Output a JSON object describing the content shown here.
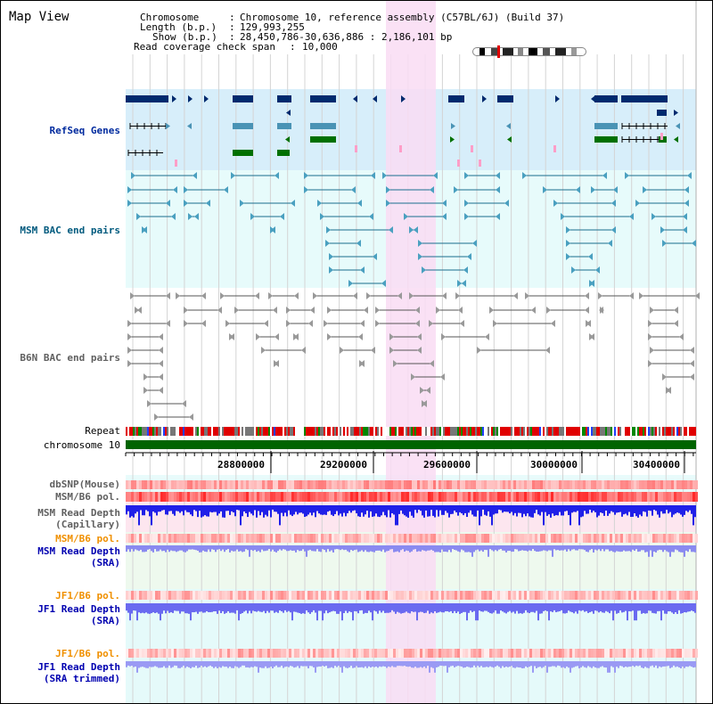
{
  "title": "Map View",
  "header": {
    "chromosome_key": "Chromosome",
    "chromosome_value": "Chromosome 10, reference assembly (C57BL/6J) (Build 37)",
    "length_key": "Length (b.p.)",
    "length_value": "129,993,255",
    "show_key": "Show (b.p.)",
    "show_value": "28,450,786-30,636,886 : 2,186,101 bp",
    "coverage_key": "Read coverage check span",
    "coverage_value": "10,000"
  },
  "tracks": {
    "refseq": "RefSeq Genes",
    "msm_bac": "MSM BAC end pairs",
    "b6n_bac": "B6N BAC end pairs",
    "repeat": "Repeat",
    "chromosome": "chromosome 10",
    "dbsnp": "dbSNP(Mouse)",
    "msm_pol": "MSM/B6 pol.",
    "msm_depth_cap_1": "MSM Read Depth",
    "msm_depth_cap_2": "(Capillary)",
    "msm_pol_2": "MSM/B6 pol.",
    "msm_depth_sra_1": "MSM Read Depth",
    "msm_depth_sra_2": "(SRA)",
    "jf1_pol": "JF1/B6 pol.",
    "jf1_depth_sra_1": "JF1 Read Depth",
    "jf1_depth_sra_2": "(SRA)",
    "jf1_pol_2": "JF1/B6 pol.",
    "jf1_depth_trim_1": "JF1 Read Depth",
    "jf1_depth_trim_2": "(SRA trimmed)"
  },
  "ruler": {
    "ticks": [
      "28800000",
      "29200000",
      "29600000",
      "30000000",
      "30400000"
    ]
  },
  "colors": {
    "highlight": "#f9dcf3",
    "refseq_bg": "#d7eefa",
    "bac_bg": "#e7fbfb",
    "navy": "#002a6e",
    "steel": "#4a93b5",
    "green": "#007000",
    "chromosome": "#006400",
    "msm_label": "#606060",
    "pol_label": "#f09000",
    "depth_label": "#0000b0"
  }
}
